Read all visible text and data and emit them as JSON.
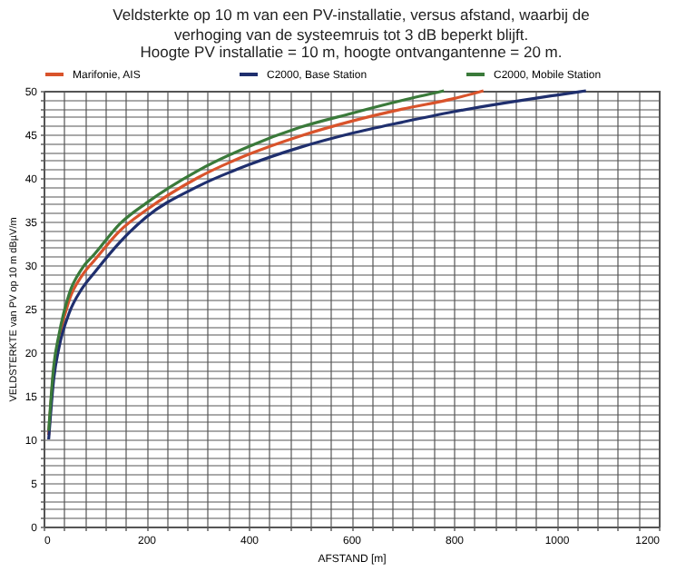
{
  "chart_data": {
    "type": "line",
    "title": "Veldsterkte op 10 m van een PV-installatie, versus afstand, waarbij de verhoging van de systeemruis tot 3 dB beperkt blijft.",
    "subtitle": "Hoogte PV installatie = 10 m,  hoogte ontvangantenne = 20 m.",
    "xlabel": "AFSTAND  [m]",
    "ylabel": "VELDSTERKTE van PV op 10 m dBµV/m",
    "legend": "top",
    "grid": true,
    "marker": "none",
    "line_style": "solid",
    "xlim": [
      0,
      1200
    ],
    "ylim": [
      0,
      50
    ],
    "xticks": [
      0,
      {
        "value": 40,
        "label": null
      },
      {
        "value": 80,
        "label": null
      },
      {
        "value": 120,
        "label": null
      },
      {
        "value": 160,
        "label": null
      },
      200,
      {
        "value": 240,
        "label": null
      },
      {
        "value": 280,
        "label": null
      },
      {
        "value": 320,
        "label": null
      },
      {
        "value": 360,
        "label": null
      },
      400,
      {
        "value": 440,
        "label": null
      },
      {
        "value": 480,
        "label": null
      },
      {
        "value": 520,
        "label": null
      },
      {
        "value": 560,
        "label": null
      },
      600,
      {
        "value": 640,
        "label": null
      },
      {
        "value": 680,
        "label": null
      },
      {
        "value": 720,
        "label": null
      },
      {
        "value": 760,
        "label": null
      },
      800,
      {
        "value": 840,
        "label": null
      },
      {
        "value": 880,
        "label": null
      },
      {
        "value": 920,
        "label": null
      },
      {
        "value": 960,
        "label": null
      },
      1000,
      {
        "value": 1040,
        "label": null
      },
      {
        "value": 1080,
        "label": null
      },
      {
        "value": 1120,
        "label": null
      },
      {
        "value": 1160,
        "label": null
      },
      1200
    ],
    "yticks": [
      0,
      {
        "value": 1,
        "label": null
      },
      {
        "value": 2,
        "label": null
      },
      {
        "value": 3,
        "label": null
      },
      {
        "value": 4,
        "label": null
      },
      5,
      {
        "value": 6,
        "label": null
      },
      {
        "value": 7,
        "label": null
      },
      {
        "value": 8,
        "label": null
      },
      {
        "value": 9,
        "label": null
      },
      10,
      {
        "value": 11,
        "label": null
      },
      {
        "value": 12,
        "label": null
      },
      {
        "value": 13,
        "label": null
      },
      {
        "value": 14,
        "label": null
      },
      15,
      {
        "value": 16,
        "label": null
      },
      {
        "value": 17,
        "label": null
      },
      {
        "value": 18,
        "label": null
      },
      {
        "value": 19,
        "label": null
      },
      20,
      {
        "value": 21,
        "label": null
      },
      {
        "value": 22,
        "label": null
      },
      {
        "value": 23,
        "label": null
      },
      {
        "value": 24,
        "label": null
      },
      25,
      {
        "value": 26,
        "label": null
      },
      {
        "value": 27,
        "label": null
      },
      {
        "value": 28,
        "label": null
      },
      {
        "value": 29,
        "label": null
      },
      30,
      {
        "value": 31,
        "label": null
      },
      {
        "value": 32,
        "label": null
      },
      {
        "value": 33,
        "label": null
      },
      {
        "value": 34,
        "label": null
      },
      35,
      {
        "value": 36,
        "label": null
      },
      {
        "value": 37,
        "label": null
      },
      {
        "value": 38,
        "label": null
      },
      {
        "value": 39,
        "label": null
      },
      40,
      {
        "value": 41,
        "label": null
      },
      {
        "value": 42,
        "label": null
      },
      {
        "value": 43,
        "label": null
      },
      {
        "value": 44,
        "label": null
      },
      45,
      {
        "value": 46,
        "label": null
      },
      {
        "value": 47,
        "label": null
      },
      {
        "value": 48,
        "label": null
      },
      {
        "value": 49,
        "label": null
      },
      50
    ],
    "series": [
      {
        "name": "Marifonie, AIS",
        "color": "#d9532b",
        "x": [
          10,
          20,
          30,
          50,
          75,
          100,
          150,
          200,
          300,
          400,
          500,
          600,
          700,
          800,
          858
        ],
        "values": [
          10.5,
          18,
          21.5,
          26,
          28.8,
          30.6,
          34.0,
          36.3,
          40.0,
          42.7,
          44.8,
          46.5,
          47.9,
          49.1,
          50
        ]
      },
      {
        "name": "C2000, Base Station",
        "color": "#1f2f6e",
        "x": [
          10,
          20,
          30,
          50,
          75,
          100,
          150,
          200,
          300,
          400,
          500,
          600,
          700,
          800,
          900,
          1000,
          1058
        ],
        "values": [
          10,
          17,
          20.5,
          24.5,
          27.3,
          29.2,
          32.7,
          35.5,
          39.0,
          41.5,
          43.5,
          45.1,
          46.4,
          47.6,
          48.6,
          49.5,
          50
        ]
      },
      {
        "name": "C2000, Mobile Station",
        "color": "#3a7a3a",
        "x": [
          10,
          20,
          30,
          50,
          75,
          100,
          150,
          200,
          300,
          400,
          500,
          600,
          700,
          781
        ],
        "values": [
          11,
          18.5,
          22,
          26.7,
          29.6,
          31.3,
          34.8,
          37.1,
          40.8,
          43.6,
          45.8,
          47.4,
          48.9,
          50
        ]
      }
    ]
  }
}
